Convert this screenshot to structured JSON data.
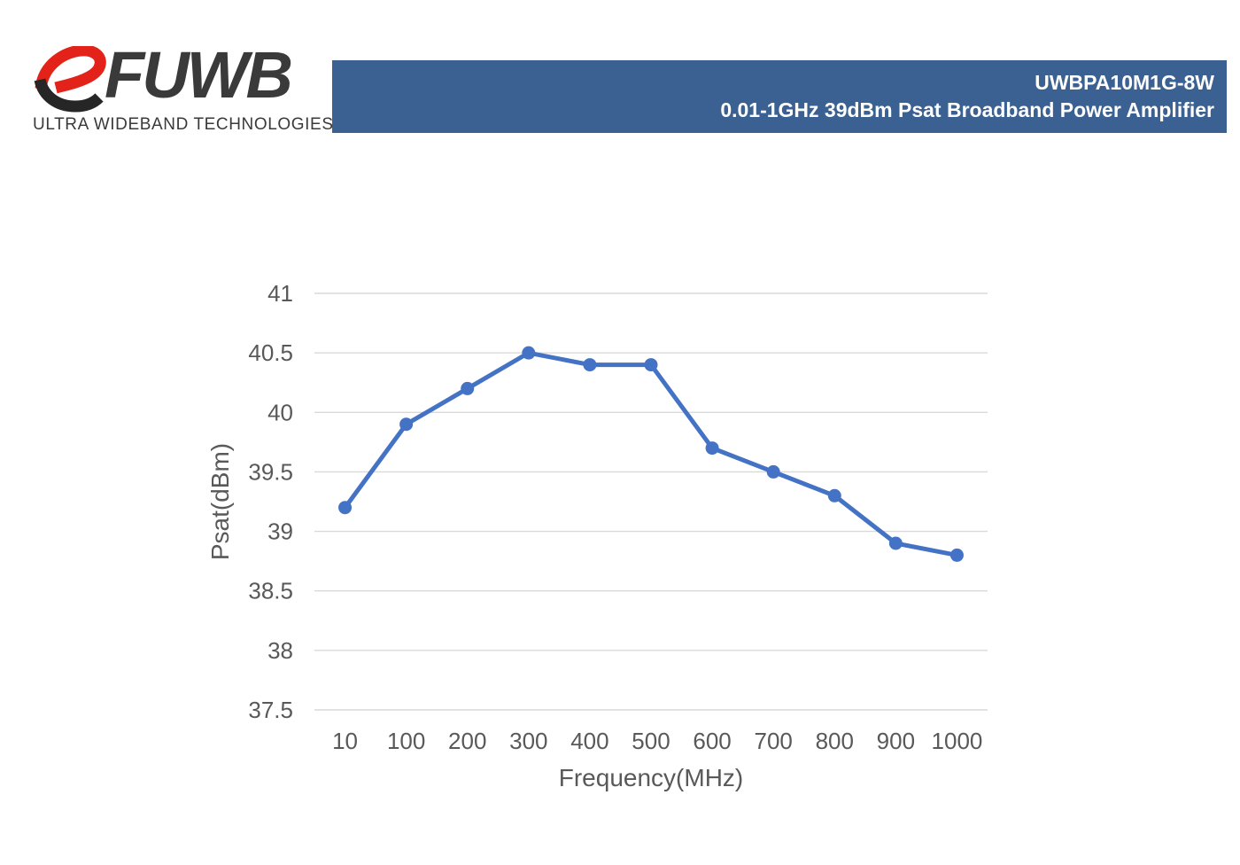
{
  "header": {
    "logo": {
      "brand": "RFUWB",
      "brand_mark": "R",
      "brand_text": "FUWB",
      "tagline": "ULTRA WIDEBAND TECHNOLOGIES"
    },
    "banner": {
      "model": "UWBPA10M1G-8W",
      "subtitle": "0.01-1GHz 39dBm Psat Broadband Power Amplifier"
    }
  },
  "colors": {
    "banner_bg": "#3A6191",
    "banner_fg": "#FFFFFF",
    "logo_red": "#E3221A",
    "logo_dark": "#3A3A3A",
    "line": "#4472C4",
    "grid": "#D9D9D9",
    "tick_text": "#595959"
  },
  "chart_data": {
    "type": "line",
    "series_name": "Psat",
    "categories": [
      "10",
      "100",
      "200",
      "300",
      "400",
      "500",
      "600",
      "700",
      "800",
      "900",
      "1000"
    ],
    "values": [
      39.2,
      39.9,
      40.2,
      40.5,
      40.4,
      40.4,
      39.7,
      39.5,
      39.3,
      38.9,
      38.8
    ],
    "xlabel": "Frequency(MHz)",
    "ylabel": "Psat(dBm)",
    "ylim": [
      37.5,
      41
    ],
    "ytick_step": 0.5,
    "grid": "horizontal-only",
    "legend": "none",
    "marker": "circle"
  }
}
